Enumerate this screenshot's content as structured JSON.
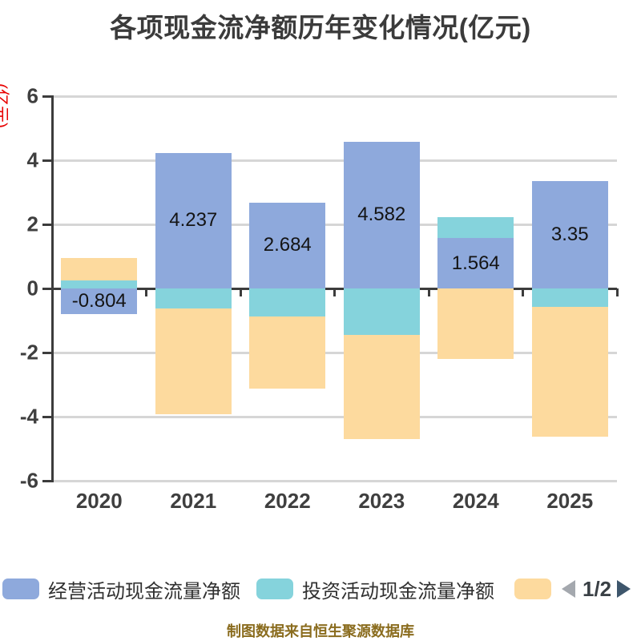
{
  "title": "各项现金流净额历年变化情况(亿元)",
  "y_axis_label": "(亿元)",
  "footer": "制图数据来自恒生聚源数据库",
  "legend": {
    "items": [
      {
        "label": "经营活动现金流量净额",
        "color": "#8EA9DC"
      },
      {
        "label": "投资活动现金流量净额",
        "color": "#85D3DC"
      },
      {
        "label": "",
        "color": "#FDDA9E"
      }
    ],
    "pagination": {
      "text": "1/2"
    }
  },
  "chart_data": {
    "type": "bar",
    "stacked": true,
    "title": "各项现金流净额历年变化情况(亿元)",
    "ylabel": "(亿元)",
    "categories": [
      "2020",
      "2021",
      "2022",
      "2023",
      "2024",
      "2025"
    ],
    "series": [
      {
        "name": "经营活动现金流量净额",
        "color": "#8EA9DC",
        "values": [
          -0.804,
          4.237,
          2.684,
          4.582,
          1.564,
          3.35
        ]
      },
      {
        "name": "投资活动现金流量净额",
        "color": "#85D3DC",
        "values": [
          0.25,
          -0.62,
          -0.87,
          -1.45,
          0.65,
          -0.57
        ],
        "values_estimated": true
      },
      {
        "name": "",
        "color": "#FDDA9E",
        "values": [
          0.7,
          -3.31,
          -2.26,
          -3.25,
          -2.2,
          -4.05
        ],
        "values_estimated": true
      }
    ],
    "bar_labels": {
      "series": "经营活动现金流量净额",
      "values": [
        "-0.804",
        "4.237",
        "2.684",
        "4.582",
        "1.564",
        "3.35"
      ]
    },
    "ylim": [
      -6,
      6
    ],
    "yticks": [
      6,
      4,
      2,
      0,
      -2,
      -4,
      -6
    ],
    "grid": true,
    "legend_position": "bottom",
    "legend_pagination": "1/2"
  },
  "colors": {
    "title": "#3B3B3B",
    "axis": "#3C3C3C",
    "grid": "#D6D6D6",
    "tick_label": "#3F3F3F",
    "bar_label": "#141414",
    "y_axis_title": "#E80000",
    "legend_text": "#303030",
    "footer": "#8A6C1E",
    "pager_prev": "#A4A8AE",
    "pager_next": "#3E566C"
  }
}
